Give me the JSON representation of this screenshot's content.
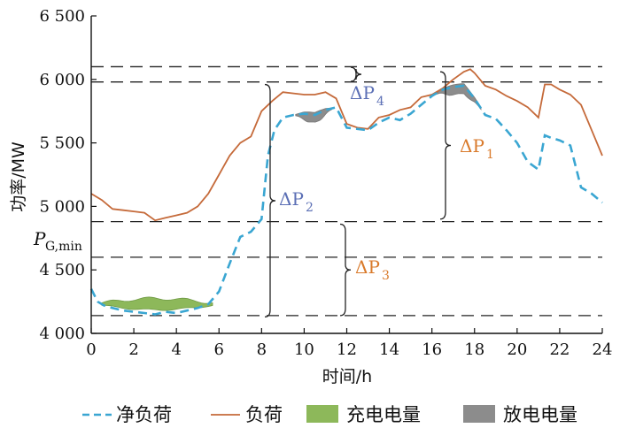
{
  "chart_data": {
    "type": "line",
    "xlabel": "时间/h",
    "ylabel": "功率/MW",
    "xlim": [
      0,
      24
    ],
    "ylim": [
      4000,
      6500
    ],
    "xticks": [
      0,
      2,
      4,
      6,
      8,
      10,
      12,
      14,
      16,
      18,
      20,
      22,
      24
    ],
    "yticks": [
      4000,
      4500,
      5000,
      5500,
      6000,
      6500
    ],
    "ytick_labels": [
      "4 000",
      "4 500",
      "5 000",
      "5 500",
      "6 000",
      "6 500"
    ],
    "grid": false,
    "legend_position": "bottom",
    "colors": {
      "net_load": "#3aa6d2",
      "load": "#c56a3a",
      "charge": "#8db85a",
      "discharge": "#8c8c8c",
      "delta_orange": "#d97a2b",
      "delta_blue": "#5b6fb5"
    },
    "series": [
      {
        "name": "净负荷",
        "style": "dashed",
        "x": [
          0,
          0.3,
          0.6,
          1,
          1.5,
          2,
          2.5,
          3,
          3.5,
          4,
          4.5,
          5,
          5.5,
          6,
          6.5,
          7,
          7.5,
          8,
          8.3,
          8.6,
          9,
          9.5,
          10,
          10.5,
          11,
          11.5,
          12,
          12.5,
          13,
          13.5,
          14,
          14.5,
          15,
          15.5,
          16,
          16.5,
          17,
          17.5,
          18,
          18.5,
          19,
          19.5,
          20,
          20.5,
          21,
          21.3,
          21.6,
          22,
          22.5,
          23,
          23.5,
          24
        ],
        "values": [
          4350,
          4250,
          4220,
          4200,
          4180,
          4170,
          4160,
          4150,
          4170,
          4160,
          4180,
          4200,
          4230,
          4330,
          4550,
          4760,
          4800,
          4900,
          5400,
          5600,
          5700,
          5720,
          5730,
          5720,
          5760,
          5780,
          5620,
          5610,
          5600,
          5660,
          5700,
          5680,
          5730,
          5800,
          5870,
          5920,
          5940,
          5950,
          5850,
          5720,
          5690,
          5600,
          5500,
          5350,
          5290,
          5560,
          5540,
          5520,
          5480,
          5150,
          5100,
          5030
        ]
      },
      {
        "name": "负荷",
        "style": "solid",
        "x": [
          0,
          0.5,
          1,
          1.5,
          2,
          2.5,
          3,
          3.5,
          4,
          4.5,
          5,
          5.5,
          6,
          6.5,
          7,
          7.5,
          8,
          8.5,
          9,
          9.5,
          10,
          10.5,
          11,
          11.5,
          12,
          12.5,
          13,
          13.5,
          14,
          14.5,
          15,
          15.5,
          16,
          16.5,
          17,
          17.5,
          17.8,
          18,
          18.5,
          19,
          19.5,
          20,
          20.5,
          21,
          21.3,
          21.6,
          22,
          22.5,
          23,
          23.5,
          24
        ],
        "values": [
          5100,
          5050,
          4980,
          4970,
          4960,
          4950,
          4890,
          4910,
          4930,
          4950,
          5000,
          5100,
          5250,
          5400,
          5500,
          5550,
          5750,
          5830,
          5900,
          5890,
          5880,
          5880,
          5900,
          5850,
          5650,
          5620,
          5610,
          5700,
          5720,
          5760,
          5780,
          5860,
          5880,
          5930,
          6000,
          6060,
          6080,
          6050,
          5950,
          5920,
          5870,
          5830,
          5780,
          5700,
          5960,
          5960,
          5920,
          5880,
          5800,
          5600,
          5400
        ]
      }
    ],
    "areas": [
      {
        "name": "充电电量",
        "x_range": [
          0.5,
          5.7
        ],
        "y_center": 4230
      },
      {
        "name": "放电电量",
        "segments": [
          [
            9.6,
            11.3
          ],
          [
            16.2,
            18.3
          ]
        ]
      }
    ],
    "reference_lines": [
      {
        "label": "P_G,min",
        "y": 4880
      },
      {
        "y": 4600
      },
      {
        "y": 4140
      },
      {
        "y": 5980
      },
      {
        "y": 6100
      }
    ],
    "annotations": {
      "dp1": {
        "text": "ΔP",
        "sub": "1"
      },
      "dp2": {
        "text": "ΔP",
        "sub": "2"
      },
      "dp3": {
        "text": "ΔP",
        "sub": "3"
      },
      "dp4": {
        "text": "ΔP",
        "sub": "4"
      },
      "pgmin": {
        "text": "P",
        "sub": "G,min"
      }
    }
  }
}
